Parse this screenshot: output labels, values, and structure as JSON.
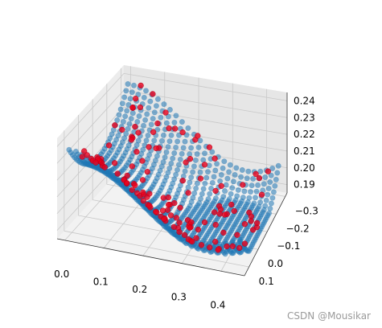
{
  "chart_data": {
    "type": "scatter",
    "projection": "3d",
    "grid": true,
    "x_ticks": [
      "0.0",
      "0.1",
      "0.2",
      "0.3",
      "0.4"
    ],
    "y_ticks": [
      "−0.3",
      "−0.2",
      "−0.1",
      "0.0",
      "0.1"
    ],
    "z_ticks": [
      "0.19",
      "0.20",
      "0.21",
      "0.22",
      "0.23",
      "0.24"
    ],
    "xlim": [
      -0.02,
      0.46
    ],
    "ylim": [
      -0.32,
      0.15
    ],
    "zlim": [
      0.185,
      0.245
    ],
    "series": [
      {
        "color": "#1f77b4",
        "marker": "o"
      },
      {
        "color": "#e8001c",
        "marker": "o"
      }
    ]
  },
  "watermark": "CSDN @Mousikar"
}
